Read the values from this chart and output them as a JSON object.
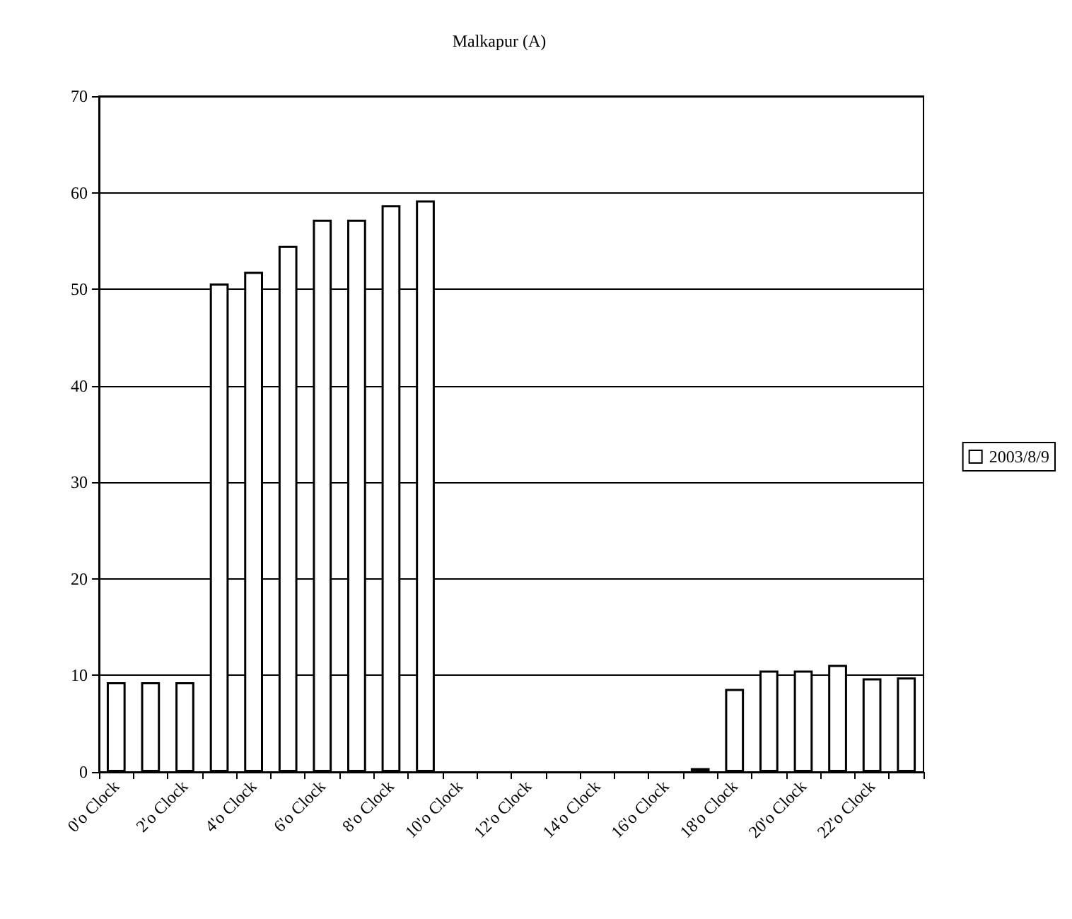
{
  "chart_data": {
    "type": "bar",
    "title": "Malkapur (A)",
    "categories": [
      "0'o Clock",
      null,
      "2'o Clock",
      null,
      "4'o Clock",
      null,
      "6'o Clock",
      null,
      "8'o Clock",
      null,
      "10'o Clock",
      null,
      "12'o Clock",
      null,
      "14'o Clock",
      null,
      "16'o Clock",
      null,
      "18'o Clock",
      null,
      "20'o Clock",
      null,
      "22'o Clock",
      null
    ],
    "series": [
      {
        "name": "2003/8/9",
        "color": "#ffffff",
        "values": [
          9.3,
          9.3,
          9.3,
          50.6,
          51.8,
          54.5,
          57.2,
          57.2,
          58.7,
          59.2,
          0,
          0,
          0,
          0,
          0,
          0,
          0,
          0.4,
          8.6,
          10.5,
          10.5,
          11.1,
          9.7,
          9.8
        ]
      }
    ],
    "ylim": [
      0,
      70
    ],
    "yticks": [
      0,
      10,
      20,
      30,
      40,
      50,
      60,
      70
    ],
    "grid": "y",
    "legend": "right"
  }
}
